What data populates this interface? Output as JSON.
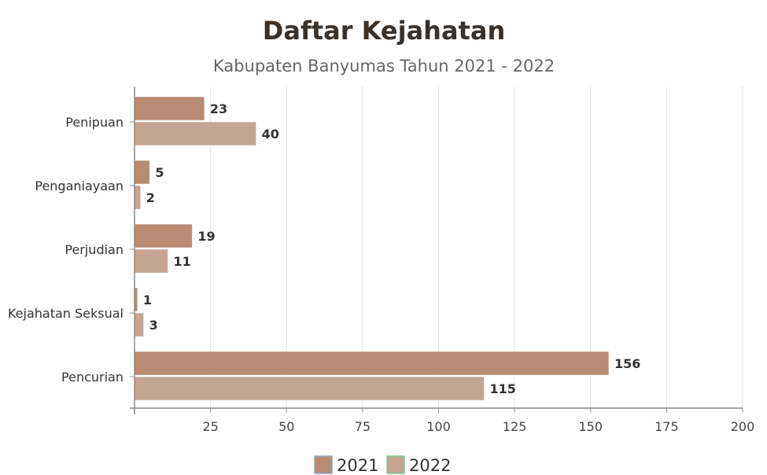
{
  "chart_data": {
    "type": "bar",
    "orientation": "horizontal",
    "title": "Daftar Kejahatan",
    "subtitle": "Kabupaten Banyumas Tahun 2021 - 2022",
    "categories": [
      "Penipuan",
      "Penganiayaan",
      "Perjudian",
      "Kejahatan Seksual",
      "Pencurian"
    ],
    "series": [
      {
        "name": "2021",
        "values": [
          23,
          5,
          19,
          1,
          156
        ],
        "color": "#b98b72"
      },
      {
        "name": "2022",
        "values": [
          40,
          2,
          11,
          3,
          115
        ],
        "color": "#c4a593"
      }
    ],
    "xlim": [
      0,
      200
    ],
    "xticks": [
      25,
      50,
      75,
      100,
      125,
      150,
      175,
      200
    ],
    "grid": true,
    "legend_position": "bottom",
    "legend_border_colors": [
      "#8fa6c8",
      "#7fcf8a"
    ]
  }
}
